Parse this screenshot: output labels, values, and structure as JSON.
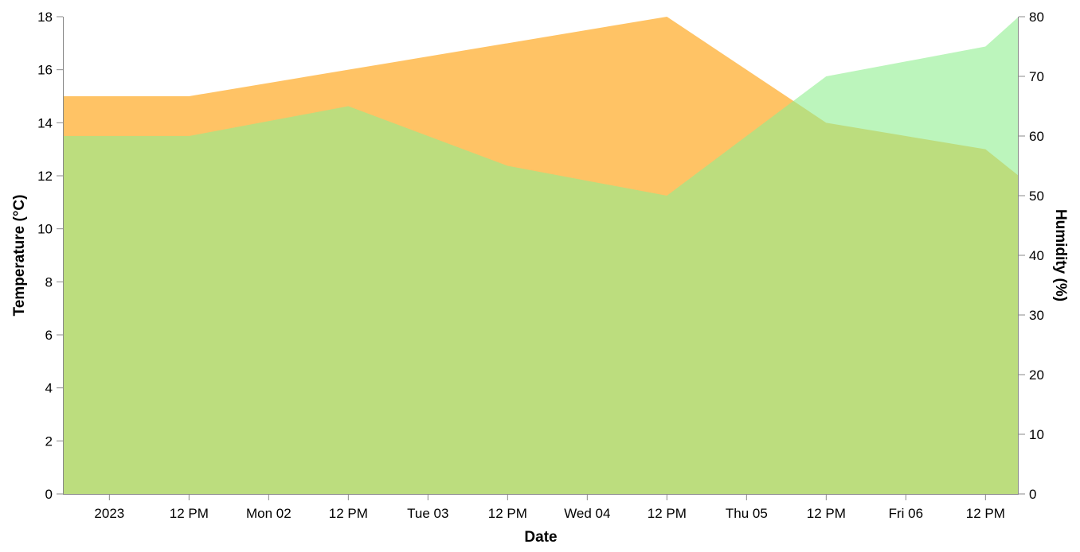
{
  "chart_data": {
    "type": "area",
    "xlabel": "Date",
    "ylabel_left": "Temperature (°C)",
    "ylabel_right": "Humidity (%)",
    "x": [
      "2023-01-01",
      "2023-01-02",
      "2023-01-03",
      "2023-01-04",
      "2023-01-05",
      "2023-01-06",
      "2023-01-07"
    ],
    "x_ticks": [
      {
        "label": "2023",
        "t": "2023-01-01T00:00"
      },
      {
        "label": "12 PM",
        "t": "2023-01-01T12:00"
      },
      {
        "label": "Mon 02",
        "t": "2023-01-02T00:00"
      },
      {
        "label": "12 PM",
        "t": "2023-01-02T12:00"
      },
      {
        "label": "Tue 03",
        "t": "2023-01-03T00:00"
      },
      {
        "label": "12 PM",
        "t": "2023-01-03T12:00"
      },
      {
        "label": "Wed 04",
        "t": "2023-01-04T00:00"
      },
      {
        "label": "12 PM",
        "t": "2023-01-04T12:00"
      },
      {
        "label": "Thu 05",
        "t": "2023-01-05T00:00"
      },
      {
        "label": "12 PM",
        "t": "2023-01-05T12:00"
      },
      {
        "label": "Fri 06",
        "t": "2023-01-06T00:00"
      },
      {
        "label": "12 PM",
        "t": "2023-01-06T12:00"
      }
    ],
    "xlim": [
      "2022-12-31T17:00",
      "2023-01-06T17:00"
    ],
    "series": [
      {
        "values": [
          15,
          16,
          17,
          18,
          14,
          13,
          12
        ],
        "axis": "left",
        "color": "#FFB94A"
      },
      {
        "values": [
          60,
          65,
          55,
          50,
          70,
          75,
          80
        ],
        "axis": "right",
        "color": "#90EE90"
      }
    ],
    "ylim_left": [
      0,
      18
    ],
    "ylim_right": [
      0,
      80
    ],
    "y_ticks_left": [
      0,
      2,
      4,
      6,
      8,
      10,
      12,
      14,
      16,
      18
    ],
    "y_ticks_right": [
      0,
      10,
      20,
      30,
      40,
      50,
      60,
      70,
      80
    ],
    "grid": false
  }
}
